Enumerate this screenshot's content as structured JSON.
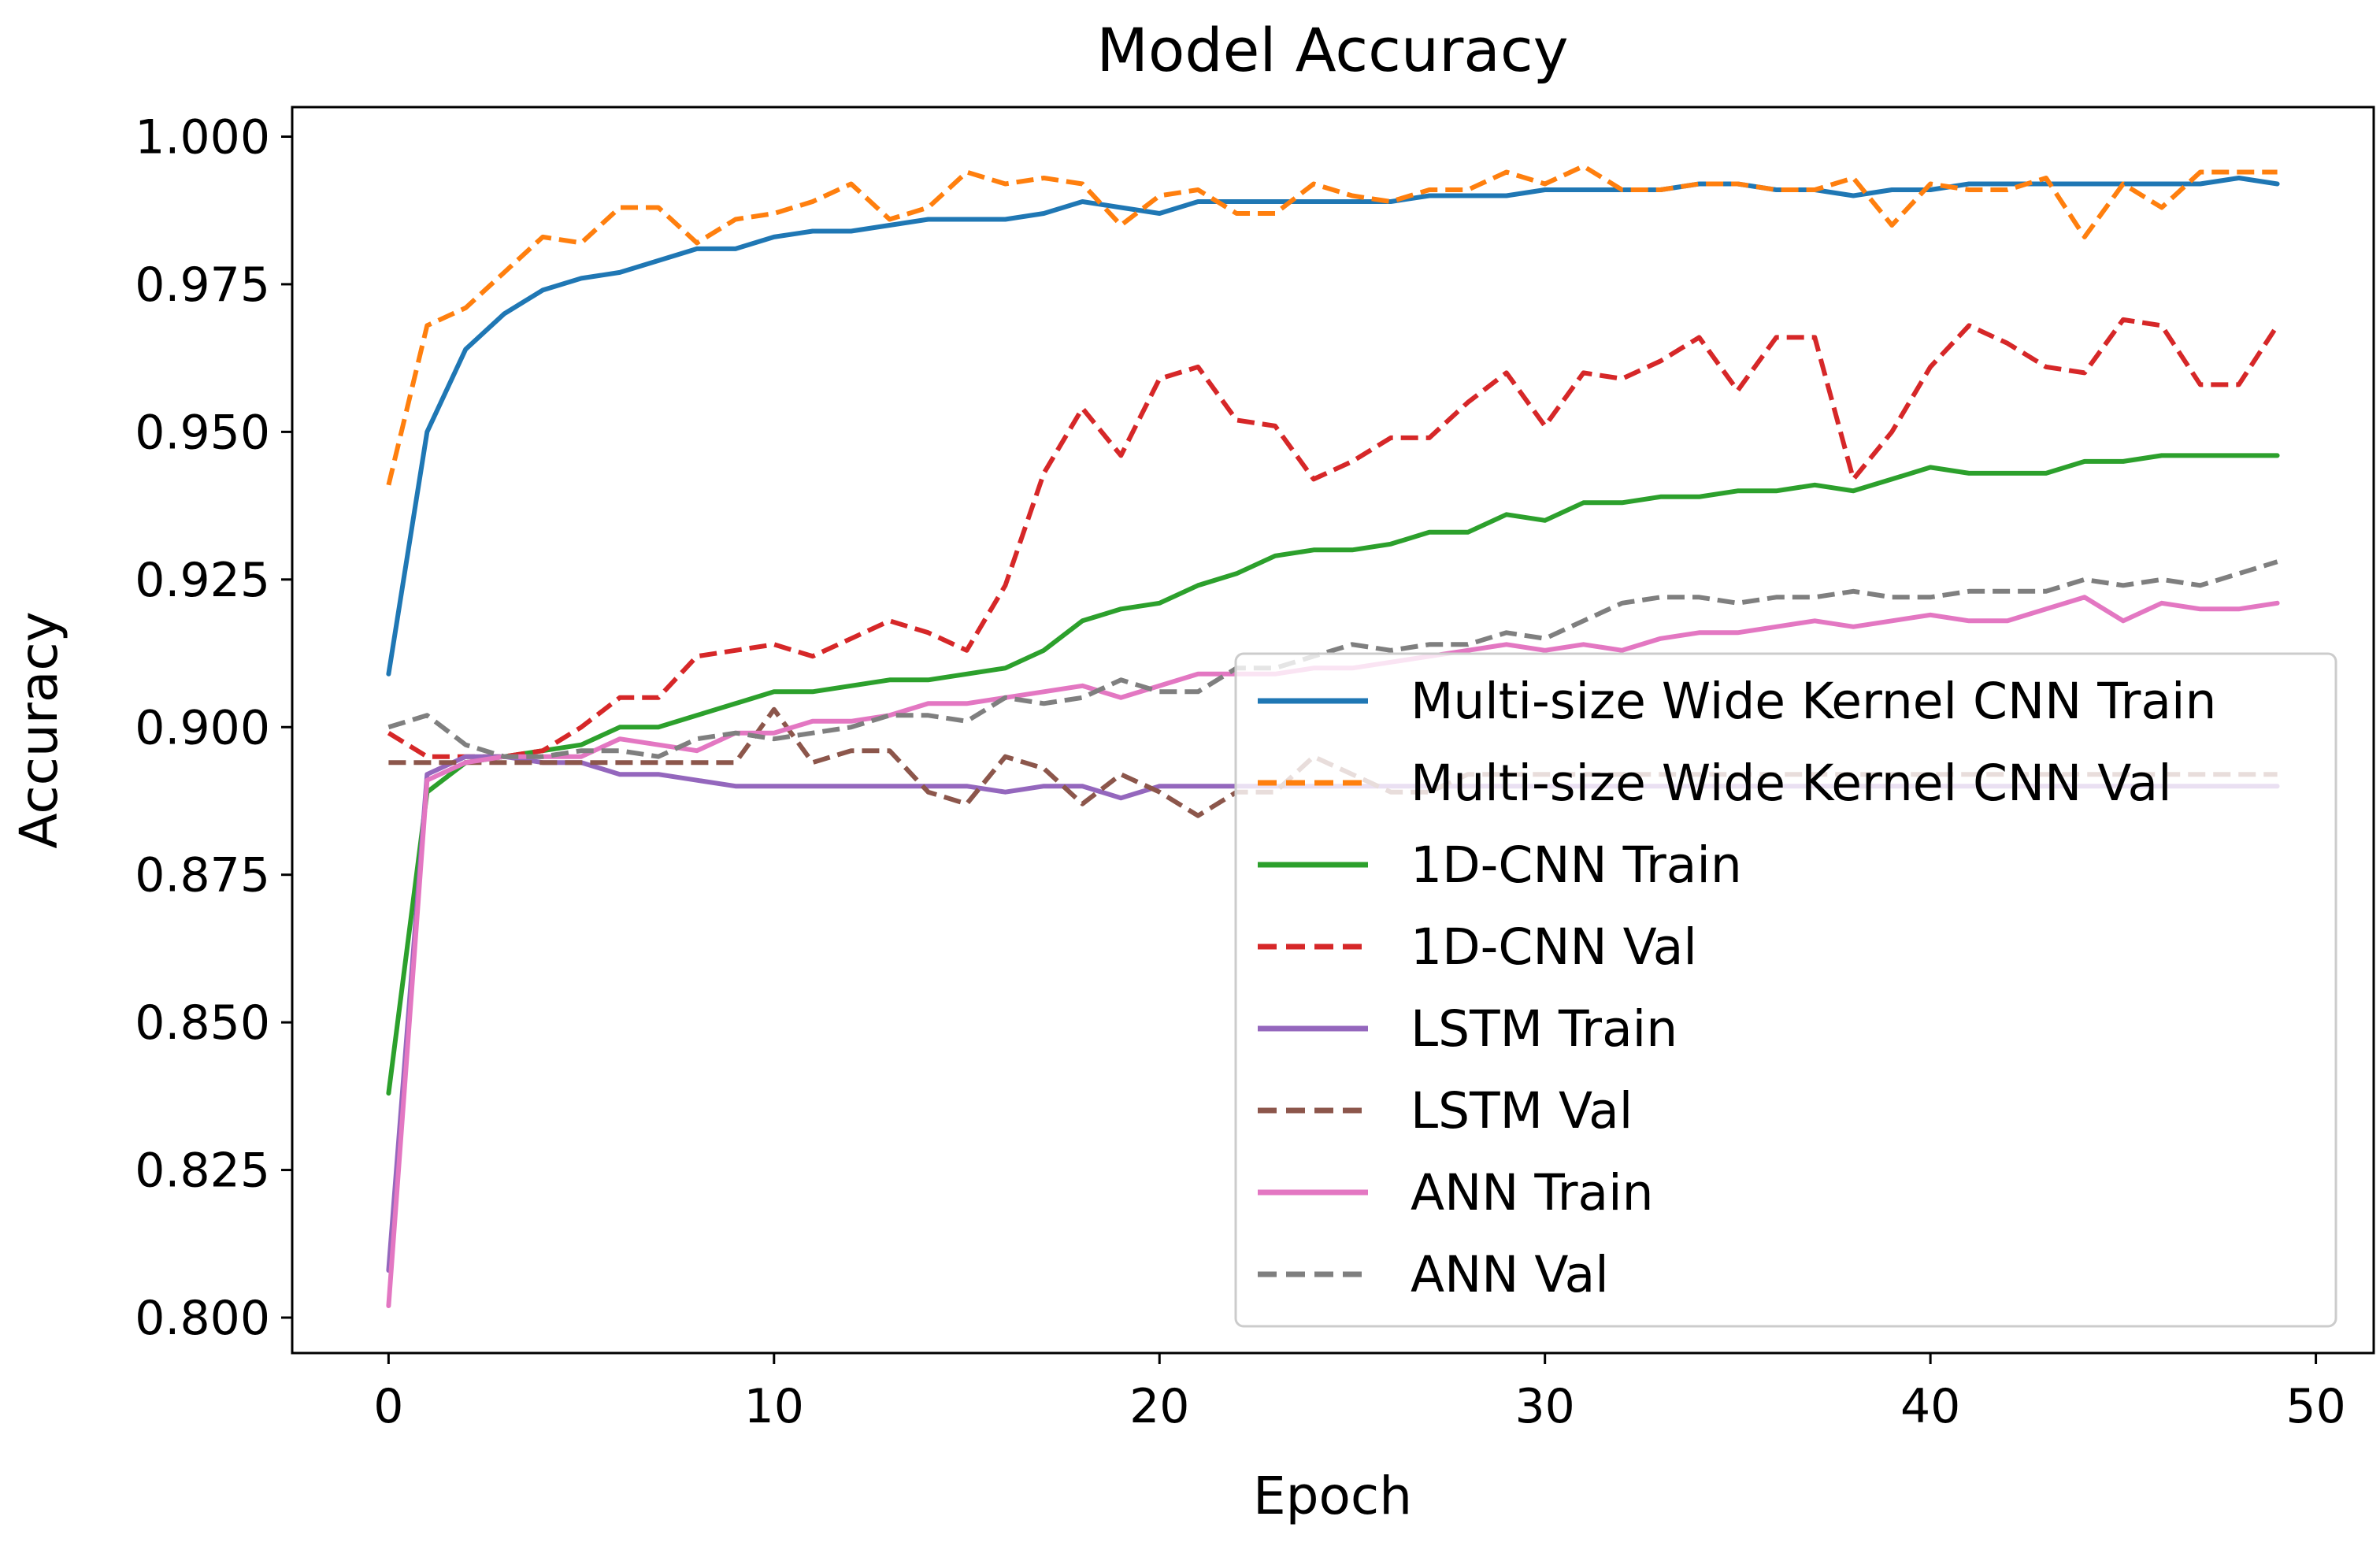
{
  "chart_data": {
    "type": "line",
    "title": "Model Accuracy",
    "xlabel": "Epoch",
    "ylabel": "Accuracy",
    "xlim": [
      -2.5,
      51.5
    ],
    "ylim": [
      0.794,
      1.005
    ],
    "xticks": [
      0,
      10,
      20,
      30,
      40,
      50
    ],
    "xtick_labels": [
      "0",
      "10",
      "20",
      "30",
      "40",
      "50"
    ],
    "yticks": [
      0.8,
      0.825,
      0.85,
      0.875,
      0.9,
      0.925,
      0.95,
      0.975,
      1.0
    ],
    "ytick_labels": [
      "0.800",
      "0.825",
      "0.850",
      "0.875",
      "0.900",
      "0.925",
      "0.950",
      "0.975",
      "1.000"
    ],
    "grid": false,
    "legend_position": "lower-right",
    "x": [
      0,
      1,
      2,
      3,
      4,
      5,
      6,
      7,
      8,
      9,
      10,
      11,
      12,
      13,
      14,
      15,
      16,
      17,
      18,
      19,
      20,
      21,
      22,
      23,
      24,
      25,
      26,
      27,
      28,
      29,
      30,
      31,
      32,
      33,
      34,
      35,
      36,
      37,
      38,
      39,
      40,
      41,
      42,
      43,
      44,
      45,
      46,
      47,
      48,
      49
    ],
    "series": [
      {
        "name": "Multi-size Wide Kernel CNN Train",
        "color": "#1f77b4",
        "dashed": false,
        "values": [
          0.909,
          0.95,
          0.964,
          0.97,
          0.974,
          0.976,
          0.977,
          0.979,
          0.981,
          0.981,
          0.983,
          0.984,
          0.984,
          0.985,
          0.986,
          0.986,
          0.986,
          0.987,
          0.989,
          0.988,
          0.987,
          0.989,
          0.989,
          0.989,
          0.989,
          0.989,
          0.989,
          0.99,
          0.99,
          0.99,
          0.991,
          0.991,
          0.991,
          0.991,
          0.992,
          0.992,
          0.991,
          0.991,
          0.99,
          0.991,
          0.991,
          0.992,
          0.992,
          0.992,
          0.992,
          0.992,
          0.992,
          0.992,
          0.993,
          0.992
        ]
      },
      {
        "name": "Multi-size Wide Kernel CNN Val",
        "color": "#ff7f0e",
        "dashed": true,
        "values": [
          0.941,
          0.968,
          0.971,
          0.977,
          0.983,
          0.982,
          0.988,
          0.988,
          0.982,
          0.986,
          0.987,
          0.989,
          0.992,
          0.986,
          0.988,
          0.994,
          0.992,
          0.993,
          0.992,
          0.985,
          0.99,
          0.991,
          0.987,
          0.987,
          0.992,
          0.99,
          0.989,
          0.991,
          0.991,
          0.994,
          0.992,
          0.995,
          0.991,
          0.991,
          0.992,
          0.992,
          0.991,
          0.991,
          0.993,
          0.985,
          0.992,
          0.991,
          0.991,
          0.993,
          0.983,
          0.992,
          0.988,
          0.994,
          0.994,
          0.994
        ]
      },
      {
        "name": "1D-CNN Train",
        "color": "#2ca02c",
        "dashed": false,
        "values": [
          0.838,
          0.889,
          0.894,
          0.895,
          0.896,
          0.897,
          0.9,
          0.9,
          0.902,
          0.904,
          0.906,
          0.906,
          0.907,
          0.908,
          0.908,
          0.909,
          0.91,
          0.913,
          0.918,
          0.92,
          0.921,
          0.924,
          0.926,
          0.929,
          0.93,
          0.93,
          0.931,
          0.933,
          0.933,
          0.936,
          0.935,
          0.938,
          0.938,
          0.939,
          0.939,
          0.94,
          0.94,
          0.941,
          0.94,
          0.942,
          0.944,
          0.943,
          0.943,
          0.943,
          0.945,
          0.945,
          0.946,
          0.946,
          0.946,
          0.946
        ]
      },
      {
        "name": "1D-CNN Val",
        "color": "#d62728",
        "dashed": true,
        "values": [
          0.899,
          0.895,
          0.895,
          0.895,
          0.896,
          0.9,
          0.905,
          0.905,
          0.912,
          0.913,
          0.914,
          0.912,
          0.915,
          0.918,
          0.916,
          0.913,
          0.924,
          0.943,
          0.954,
          0.946,
          0.959,
          0.961,
          0.952,
          0.951,
          0.942,
          0.945,
          0.949,
          0.949,
          0.955,
          0.96,
          0.951,
          0.96,
          0.959,
          0.962,
          0.966,
          0.957,
          0.966,
          0.966,
          0.942,
          0.95,
          0.961,
          0.968,
          0.965,
          0.961,
          0.96,
          0.969,
          0.968,
          0.958,
          0.958,
          0.968
        ]
      },
      {
        "name": "LSTM Train",
        "color": "#9467bd",
        "dashed": false,
        "values": [
          0.808,
          0.892,
          0.895,
          0.895,
          0.894,
          0.894,
          0.892,
          0.892,
          0.891,
          0.89,
          0.89,
          0.89,
          0.89,
          0.89,
          0.89,
          0.89,
          0.889,
          0.89,
          0.89,
          0.888,
          0.89,
          0.89,
          0.89,
          0.89,
          0.89,
          0.89,
          0.89,
          0.89,
          0.89,
          0.89,
          0.89,
          0.89,
          0.89,
          0.89,
          0.89,
          0.89,
          0.89,
          0.89,
          0.89,
          0.89,
          0.89,
          0.89,
          0.89,
          0.89,
          0.89,
          0.89,
          0.89,
          0.89,
          0.89,
          0.89
        ]
      },
      {
        "name": "LSTM Val",
        "color": "#8c564b",
        "dashed": true,
        "values": [
          0.894,
          0.894,
          0.894,
          0.894,
          0.894,
          0.894,
          0.894,
          0.894,
          0.894,
          0.894,
          0.903,
          0.894,
          0.896,
          0.896,
          0.889,
          0.887,
          0.895,
          0.893,
          0.887,
          0.892,
          0.889,
          0.885,
          0.889,
          0.889,
          0.895,
          0.892,
          0.889,
          0.889,
          0.892,
          0.892,
          0.892,
          0.892,
          0.892,
          0.892,
          0.892,
          0.892,
          0.892,
          0.892,
          0.892,
          0.892,
          0.892,
          0.892,
          0.892,
          0.892,
          0.892,
          0.892,
          0.892,
          0.892,
          0.892,
          0.892
        ]
      },
      {
        "name": "ANN Train",
        "color": "#e377c2",
        "dashed": false,
        "values": [
          0.802,
          0.891,
          0.894,
          0.895,
          0.895,
          0.895,
          0.898,
          0.897,
          0.896,
          0.899,
          0.899,
          0.901,
          0.901,
          0.902,
          0.904,
          0.904,
          0.905,
          0.906,
          0.907,
          0.905,
          0.907,
          0.909,
          0.909,
          0.909,
          0.91,
          0.91,
          0.911,
          0.912,
          0.913,
          0.914,
          0.913,
          0.914,
          0.913,
          0.915,
          0.916,
          0.916,
          0.917,
          0.918,
          0.917,
          0.918,
          0.919,
          0.918,
          0.918,
          0.92,
          0.922,
          0.918,
          0.921,
          0.92,
          0.92,
          0.921
        ]
      },
      {
        "name": "ANN Val",
        "color": "#7f7f7f",
        "dashed": true,
        "values": [
          0.9,
          0.902,
          0.897,
          0.895,
          0.895,
          0.896,
          0.896,
          0.895,
          0.898,
          0.899,
          0.898,
          0.899,
          0.9,
          0.902,
          0.902,
          0.901,
          0.905,
          0.904,
          0.905,
          0.908,
          0.906,
          0.906,
          0.91,
          0.91,
          0.912,
          0.914,
          0.913,
          0.914,
          0.914,
          0.916,
          0.915,
          0.918,
          0.921,
          0.922,
          0.922,
          0.921,
          0.922,
          0.922,
          0.923,
          0.922,
          0.922,
          0.923,
          0.923,
          0.923,
          0.925,
          0.924,
          0.925,
          0.924,
          0.926,
          0.928
        ]
      }
    ]
  }
}
